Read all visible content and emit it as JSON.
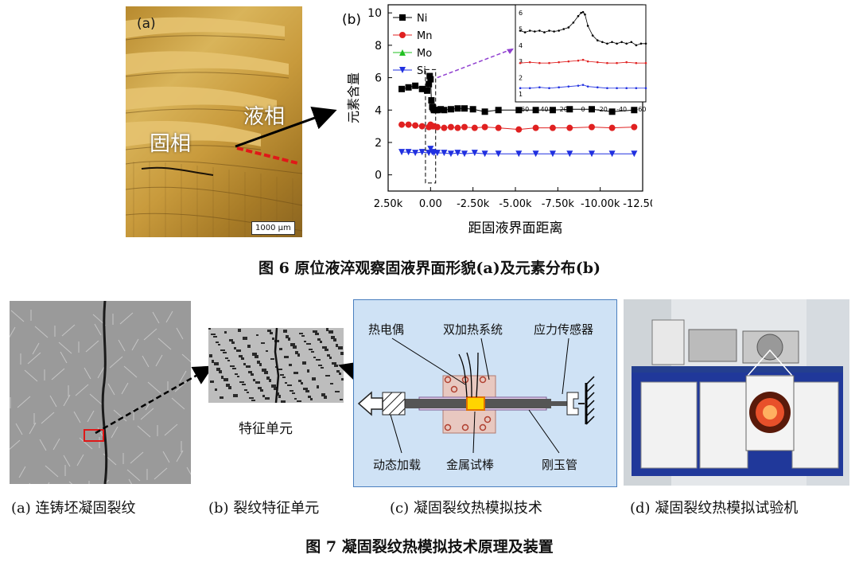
{
  "figure6": {
    "panel_a_label": "(a)",
    "panel_b_label": "(b)",
    "liquid_label": "液相",
    "solid_label": "固相",
    "scale_bar": "1000 µm",
    "caption": "图 6  原位液淬观察固液界面形貌(a)及元素分布(b)"
  },
  "chart_data": {
    "type": "scatter",
    "ylabel": "元素含量",
    "xlabel": "距固液界面距离",
    "x_ticks": [
      "2.50k",
      "0.00",
      "-2.50k",
      "-5.00k",
      "-7.50k",
      "-10.00k",
      "-12.50k"
    ],
    "y_ticks": [
      "0",
      "2",
      "4",
      "6",
      "8",
      "10"
    ],
    "xlim": [
      2500,
      -12500
    ],
    "ylim": [
      -1,
      10.5
    ],
    "legend_position": "top-left",
    "series": [
      {
        "name": "Ni",
        "color": "#000000",
        "marker": "square",
        "x": [
          1700,
          1300,
          900,
          500,
          200,
          100,
          50,
          0,
          -50,
          -100,
          -150,
          -200,
          -300,
          -400,
          -600,
          -800,
          -1200,
          -1600,
          -2000,
          -2500,
          -3200,
          -4000,
          -5200,
          -6200,
          -7200,
          -8200,
          -9500,
          -10700,
          -12000
        ],
        "y": [
          5.3,
          5.4,
          5.5,
          5.3,
          5.2,
          5.6,
          6.1,
          5.9,
          4.6,
          4.2,
          4.1,
          4.0,
          4.0,
          4.0,
          4.05,
          4.0,
          4.05,
          4.1,
          4.1,
          4.05,
          3.9,
          4.0,
          4.0,
          4.0,
          4.0,
          4.05,
          4.05,
          3.9,
          4.0
        ]
      },
      {
        "name": "Mn",
        "color": "#e02020",
        "marker": "circle",
        "x": [
          1700,
          1300,
          900,
          500,
          100,
          0,
          -100,
          -200,
          -400,
          -800,
          -1200,
          -1600,
          -2000,
          -2600,
          -3200,
          -4000,
          -5200,
          -6200,
          -7200,
          -8200,
          -9500,
          -10700,
          -12000
        ],
        "y": [
          3.1,
          3.1,
          3.05,
          3.0,
          2.95,
          3.1,
          3.0,
          3.0,
          2.95,
          2.9,
          2.95,
          2.9,
          2.95,
          2.9,
          2.95,
          2.9,
          2.8,
          2.9,
          2.9,
          2.9,
          2.95,
          2.9,
          2.95
        ]
      },
      {
        "name": "Mo",
        "color": "#22c022",
        "marker": "triangle-up",
        "x": [],
        "y": []
      },
      {
        "name": "Si",
        "color": "#2030e0",
        "marker": "triangle-down",
        "x": [
          1700,
          1300,
          900,
          500,
          100,
          0,
          -100,
          -200,
          -400,
          -800,
          -1200,
          -1600,
          -2000,
          -2600,
          -3200,
          -4000,
          -5200,
          -6200,
          -7200,
          -8200,
          -9500,
          -10700,
          -12000
        ],
        "y": [
          1.4,
          1.4,
          1.35,
          1.4,
          1.35,
          1.6,
          1.4,
          1.35,
          1.35,
          1.35,
          1.3,
          1.35,
          1.3,
          1.35,
          1.3,
          1.3,
          1.3,
          1.3,
          1.3,
          1.3,
          1.3,
          1.3,
          1.3
        ]
      }
    ],
    "inset": {
      "x_ticks": [
        "60",
        "40",
        "20",
        "0",
        "-20",
        "-40",
        "-60"
      ],
      "y_ticks": [
        "1",
        "2",
        "3",
        "4",
        "5",
        "6"
      ],
      "xlim": [
        70,
        -65
      ],
      "ylim": [
        0.5,
        6.5
      ],
      "series": [
        {
          "name": "Ni",
          "color": "#000000",
          "x": [
            65,
            60,
            55,
            50,
            45,
            40,
            35,
            30,
            25,
            20,
            15,
            10,
            5,
            2,
            0,
            -2,
            -5,
            -10,
            -15,
            -20,
            -25,
            -30,
            -35,
            -40,
            -45,
            -50,
            -55,
            -60,
            -65
          ],
          "y": [
            4.9,
            4.8,
            4.9,
            4.85,
            4.9,
            4.8,
            4.9,
            4.85,
            4.9,
            5.0,
            5.1,
            5.4,
            5.8,
            6.0,
            6.05,
            5.9,
            5.2,
            4.6,
            4.3,
            4.2,
            4.1,
            4.2,
            4.1,
            4.2,
            4.1,
            4.2,
            4.0,
            4.1,
            4.1
          ]
        },
        {
          "name": "Mn",
          "color": "#e02020",
          "x": [
            65,
            55,
            45,
            35,
            25,
            15,
            5,
            0,
            -5,
            -15,
            -25,
            -35,
            -45,
            -55,
            -65
          ],
          "y": [
            2.9,
            2.95,
            2.9,
            2.9,
            2.95,
            3.0,
            3.05,
            3.1,
            3.0,
            2.95,
            2.9,
            2.9,
            2.95,
            2.9,
            2.9
          ]
        },
        {
          "name": "Si",
          "color": "#2030e0",
          "x": [
            65,
            55,
            45,
            35,
            25,
            15,
            5,
            0,
            -5,
            -15,
            -25,
            -35,
            -45,
            -55,
            -65
          ],
          "y": [
            1.35,
            1.35,
            1.4,
            1.35,
            1.4,
            1.45,
            1.5,
            1.55,
            1.45,
            1.4,
            1.35,
            1.35,
            1.35,
            1.35,
            1.35
          ]
        }
      ]
    }
  },
  "figure7": {
    "feature_unit_label": "特征单元",
    "diagram_labels": {
      "thermocouple": "热电偶",
      "dual_heating": "双加热系统",
      "stress_sensor": "应力传感器",
      "dynamic_load": "动态加载",
      "metal_rod": "金属试棒",
      "corundum_tube": "刚玉管"
    },
    "sub_captions": {
      "a": "(a) 连铸坯凝固裂纹",
      "b": "(b) 裂纹特征单元",
      "c": "(c) 凝固裂纹热模拟技术",
      "d": "(d) 凝固裂纹热模拟试验机"
    },
    "caption": "图 7  凝固裂纹热模拟技术原理及装置"
  }
}
